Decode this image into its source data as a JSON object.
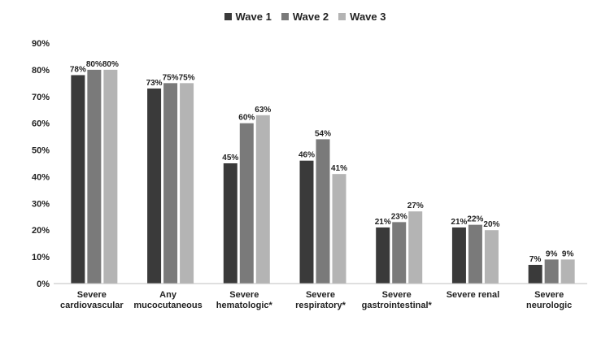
{
  "chart_data": {
    "type": "bar",
    "categories": [
      [
        "Severe",
        "cardiovascular"
      ],
      [
        "Any",
        "mucocutaneous"
      ],
      [
        "Severe",
        "hematologic*"
      ],
      [
        "Severe",
        "respiratory*"
      ],
      [
        "Severe",
        "gastrointestinal*"
      ],
      [
        "Severe renal"
      ],
      [
        "Severe",
        "neurologic"
      ]
    ],
    "series": [
      {
        "name": "Wave 1",
        "color": "#3a3a3a",
        "values": [
          78,
          73,
          45,
          46,
          21,
          21,
          7
        ],
        "labels": [
          "78%",
          "73%",
          "45%",
          "46%",
          "21%",
          "21%",
          "7%"
        ]
      },
      {
        "name": "Wave 2",
        "color": "#7a7a7a",
        "values": [
          80,
          75,
          60,
          54,
          23,
          22,
          9
        ],
        "labels": [
          "80%",
          "75%",
          "60%",
          "54%",
          "23%",
          "22%",
          "9%"
        ]
      },
      {
        "name": "Wave 3",
        "color": "#b4b4b4",
        "values": [
          80,
          75,
          63,
          41,
          27,
          20,
          9
        ],
        "labels": [
          "80%",
          "75%",
          "63%",
          "41%",
          "27%",
          "20%",
          "9%"
        ]
      }
    ],
    "ylim": [
      0,
      90
    ],
    "yticks": [
      0,
      10,
      20,
      30,
      40,
      50,
      60,
      70,
      80,
      90
    ],
    "ytick_labels": [
      "0%",
      "10%",
      "20%",
      "30%",
      "40%",
      "50%",
      "60%",
      "70%",
      "80%",
      "90%"
    ],
    "grid": false,
    "legend_position": "top-center"
  }
}
